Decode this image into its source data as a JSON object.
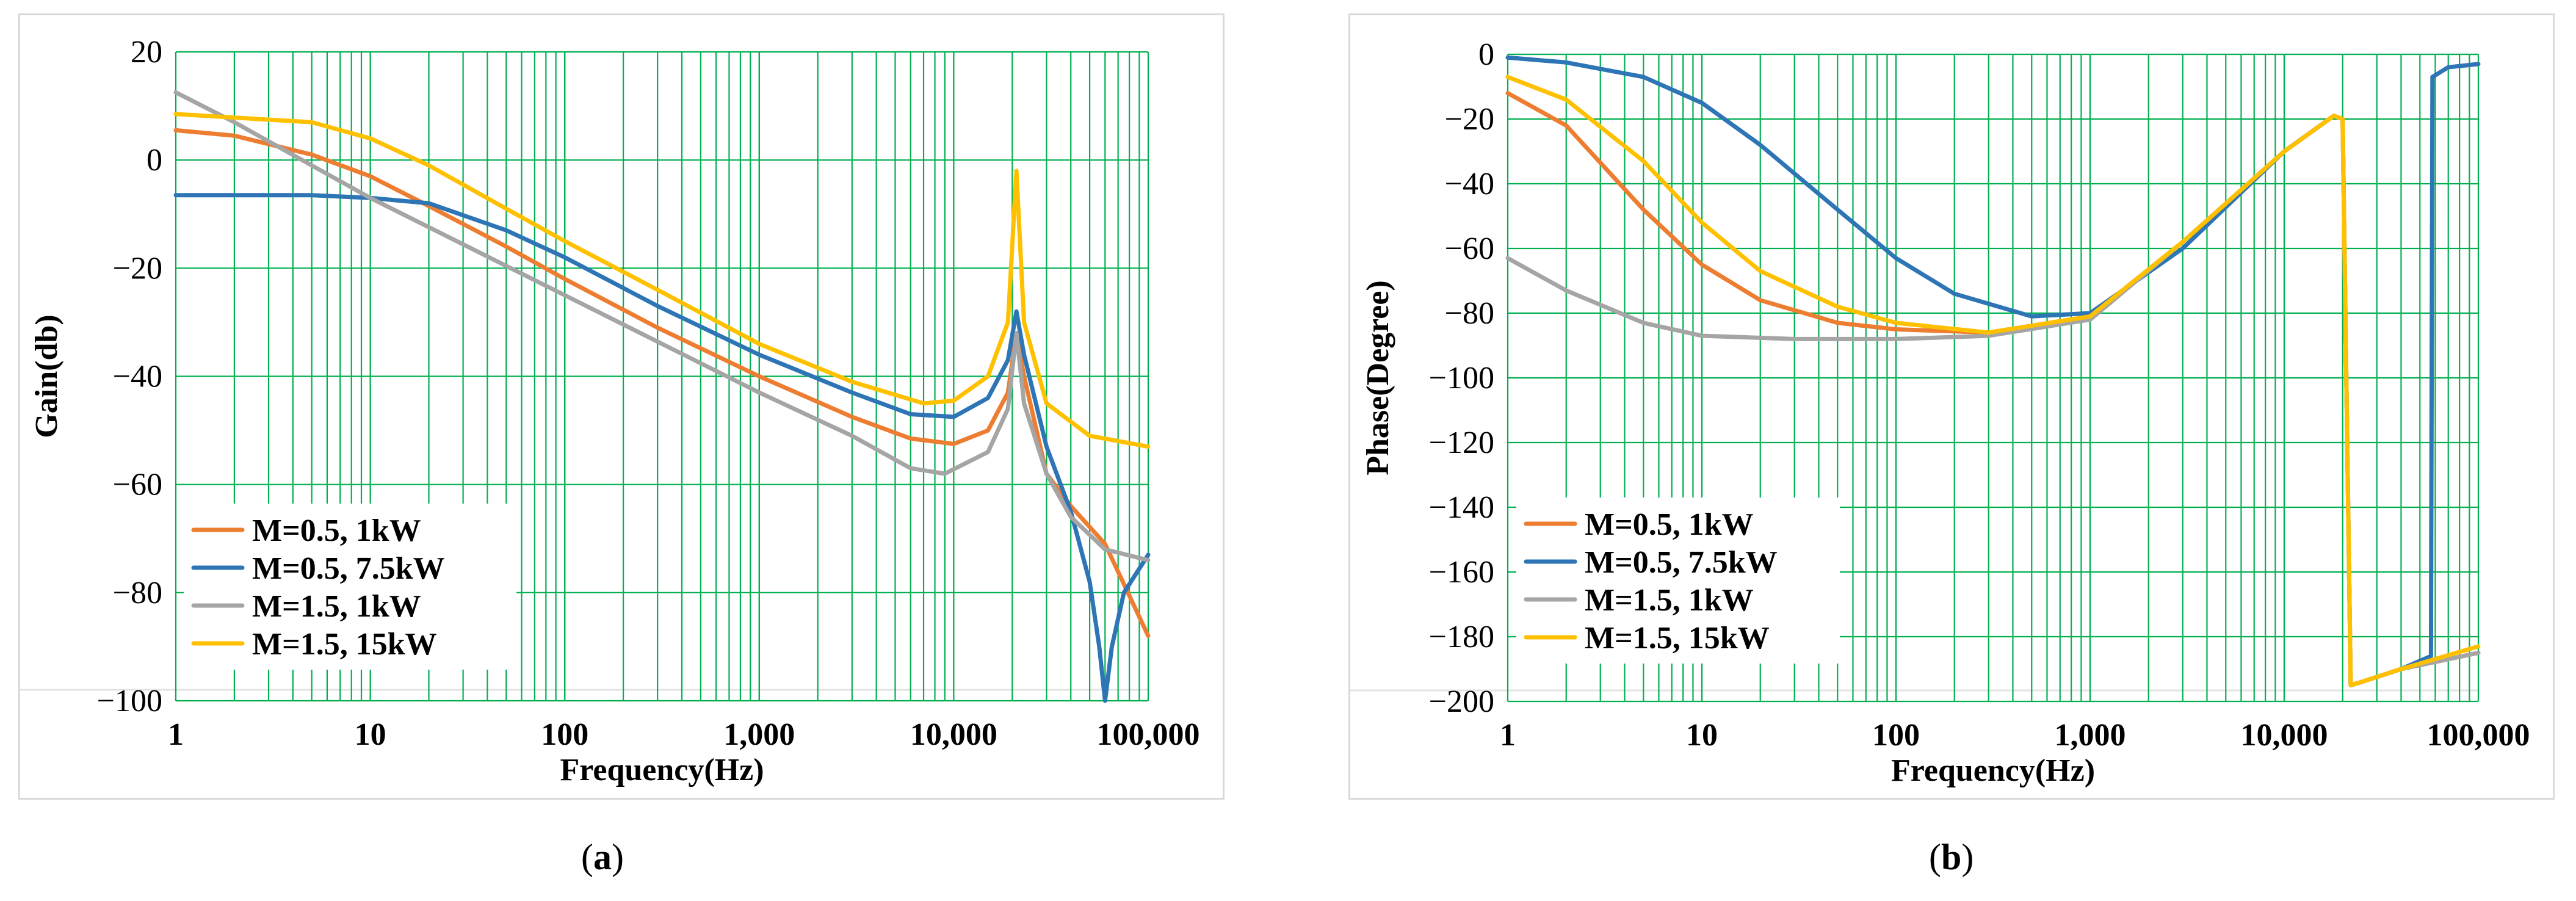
{
  "chart_data": [
    {
      "type": "line",
      "panel_label": "a",
      "xlabel": "Frequency(Hz)",
      "ylabel": "Gain(db)",
      "xscale": "log",
      "xlim": [
        1,
        100000
      ],
      "ylim": [
        -100,
        20
      ],
      "x_ticks": [
        1,
        10,
        100,
        1000,
        10000,
        100000
      ],
      "x_tick_labels": [
        "1",
        "10",
        "100",
        "1,000",
        "10,000",
        "100,000"
      ],
      "y_ticks": [
        20,
        0,
        -20,
        -40,
        -60,
        -80,
        -100
      ],
      "y_tick_labels": [
        "20",
        "0",
        "−20",
        "−40",
        "−60",
        "−80",
        "−100"
      ],
      "grid": true,
      "legend_position": "bottom-left",
      "series": [
        {
          "name": "M=0.5, 1kW",
          "color": "#ed7d31",
          "points": [
            [
              1,
              5.5
            ],
            [
              2,
              4.5
            ],
            [
              5,
              1
            ],
            [
              10,
              -3
            ],
            [
              20,
              -8.5
            ],
            [
              50,
              -16
            ],
            [
              100,
              -22
            ],
            [
              300,
              -31
            ],
            [
              1000,
              -40
            ],
            [
              3000,
              -47.5
            ],
            [
              6000,
              -51.5
            ],
            [
              10000,
              -52.5
            ],
            [
              15000,
              -50
            ],
            [
              19000,
              -43
            ],
            [
              21000,
              -32
            ],
            [
              23000,
              -40
            ],
            [
              30000,
              -58
            ],
            [
              40000,
              -64
            ],
            [
              60000,
              -71
            ],
            [
              100000,
              -88
            ]
          ]
        },
        {
          "name": "M=0.5, 7.5kW",
          "color": "#2e75b6",
          "points": [
            [
              1,
              -6.5
            ],
            [
              5,
              -6.5
            ],
            [
              10,
              -7
            ],
            [
              20,
              -8
            ],
            [
              50,
              -13
            ],
            [
              100,
              -18
            ],
            [
              300,
              -27
            ],
            [
              1000,
              -36
            ],
            [
              3000,
              -43
            ],
            [
              6000,
              -47
            ],
            [
              10000,
              -47.5
            ],
            [
              15000,
              -44
            ],
            [
              19000,
              -37
            ],
            [
              21000,
              -28
            ],
            [
              23000,
              -36
            ],
            [
              30000,
              -53
            ],
            [
              40000,
              -65
            ],
            [
              50000,
              -78
            ],
            [
              56000,
              -90
            ],
            [
              60000,
              -100
            ],
            [
              65000,
              -90
            ],
            [
              75000,
              -80
            ],
            [
              100000,
              -73
            ]
          ]
        },
        {
          "name": "M=1.5, 1kW",
          "color": "#a5a5a5",
          "points": [
            [
              1,
              12.5
            ],
            [
              2,
              7
            ],
            [
              5,
              -1
            ],
            [
              10,
              -7
            ],
            [
              100,
              -25
            ],
            [
              1000,
              -43
            ],
            [
              3000,
              -51
            ],
            [
              6000,
              -57
            ],
            [
              9000,
              -58
            ],
            [
              15000,
              -54
            ],
            [
              19000,
              -46
            ],
            [
              21000,
              -32
            ],
            [
              23000,
              -45
            ],
            [
              30000,
              -58
            ],
            [
              40000,
              -66
            ],
            [
              60000,
              -72
            ],
            [
              100000,
              -74
            ]
          ]
        },
        {
          "name": "M=1.5, 15kW",
          "color": "#ffc000",
          "points": [
            [
              1,
              8.5
            ],
            [
              5,
              7
            ],
            [
              10,
              4
            ],
            [
              20,
              -1
            ],
            [
              50,
              -9
            ],
            [
              100,
              -15
            ],
            [
              300,
              -24
            ],
            [
              1000,
              -34
            ],
            [
              3000,
              -41
            ],
            [
              7000,
              -45
            ],
            [
              10000,
              -44.5
            ],
            [
              15000,
              -40
            ],
            [
              19000,
              -30
            ],
            [
              21000,
              -2
            ],
            [
              23000,
              -30
            ],
            [
              30000,
              -45
            ],
            [
              50000,
              -51
            ],
            [
              100000,
              -53
            ]
          ]
        }
      ]
    },
    {
      "type": "line",
      "panel_label": "b",
      "xlabel": "Frequency(Hz)",
      "ylabel": "Phase(Degree)",
      "xscale": "log",
      "xlim": [
        1,
        100000
      ],
      "ylim": [
        -200,
        0
      ],
      "x_ticks": [
        1,
        10,
        100,
        1000,
        10000,
        100000
      ],
      "x_tick_labels": [
        "1",
        "10",
        "100",
        "1,000",
        "10,000",
        "100,000"
      ],
      "y_ticks": [
        0,
        -20,
        -40,
        -60,
        -80,
        -100,
        -120,
        -140,
        -160,
        -180,
        -200
      ],
      "y_tick_labels": [
        "0",
        "−20",
        "−40",
        "−60",
        "−80",
        "−100",
        "−120",
        "−140",
        "−160",
        "−180",
        "−200"
      ],
      "grid": true,
      "legend_position": "bottom-left",
      "series": [
        {
          "name": "M=0.5, 1kW",
          "color": "#ed7d31",
          "points": [
            [
              1,
              -12
            ],
            [
              2,
              -22
            ],
            [
              5,
              -48
            ],
            [
              10,
              -65
            ],
            [
              20,
              -76
            ],
            [
              50,
              -83
            ],
            [
              100,
              -85
            ],
            [
              300,
              -86
            ],
            [
              1000,
              -81
            ],
            [
              3000,
              -58
            ],
            [
              10000,
              -30
            ],
            [
              18000,
              -19
            ],
            [
              20000,
              -20
            ],
            [
              22000,
              -195
            ],
            [
              25000,
              -194
            ],
            [
              40000,
              -190
            ],
            [
              100000,
              -185
            ]
          ]
        },
        {
          "name": "M=0.5, 7.5kW",
          "color": "#2e75b6",
          "points": [
            [
              1,
              -1
            ],
            [
              2,
              -2.5
            ],
            [
              5,
              -7
            ],
            [
              10,
              -15
            ],
            [
              20,
              -28
            ],
            [
              50,
              -48
            ],
            [
              100,
              -63
            ],
            [
              200,
              -74
            ],
            [
              500,
              -81
            ],
            [
              1000,
              -80
            ],
            [
              3000,
              -60
            ],
            [
              10000,
              -30
            ],
            [
              18000,
              -19
            ],
            [
              20000,
              -20
            ],
            [
              22000,
              -195
            ],
            [
              25000,
              -194
            ],
            [
              40000,
              -190
            ],
            [
              57000,
              -186
            ],
            [
              58000,
              -7
            ],
            [
              70000,
              -4
            ],
            [
              100000,
              -3
            ]
          ]
        },
        {
          "name": "M=1.5, 1kW",
          "color": "#a5a5a5",
          "points": [
            [
              1,
              -63
            ],
            [
              2,
              -73
            ],
            [
              5,
              -83
            ],
            [
              10,
              -87
            ],
            [
              30,
              -88
            ],
            [
              100,
              -88
            ],
            [
              300,
              -87
            ],
            [
              1000,
              -82
            ],
            [
              3000,
              -58
            ],
            [
              10000,
              -30
            ],
            [
              18000,
              -19
            ],
            [
              20000,
              -20
            ],
            [
              22000,
              -195
            ],
            [
              25000,
              -194
            ],
            [
              40000,
              -190
            ],
            [
              100000,
              -185
            ]
          ]
        },
        {
          "name": "M=1.5, 15kW",
          "color": "#ffc000",
          "points": [
            [
              1,
              -7
            ],
            [
              2,
              -14
            ],
            [
              5,
              -33
            ],
            [
              10,
              -52
            ],
            [
              20,
              -67
            ],
            [
              50,
              -78
            ],
            [
              100,
              -83
            ],
            [
              300,
              -86
            ],
            [
              1000,
              -81
            ],
            [
              3000,
              -58
            ],
            [
              10000,
              -30
            ],
            [
              18000,
              -19
            ],
            [
              20000,
              -20
            ],
            [
              22000,
              -195
            ],
            [
              25000,
              -194
            ],
            [
              40000,
              -190
            ],
            [
              100000,
              -183
            ]
          ]
        }
      ]
    }
  ],
  "captions": [
    {
      "open": "(",
      "label": "a",
      "close": ")"
    },
    {
      "open": "(",
      "label": "b",
      "close": ")"
    }
  ]
}
